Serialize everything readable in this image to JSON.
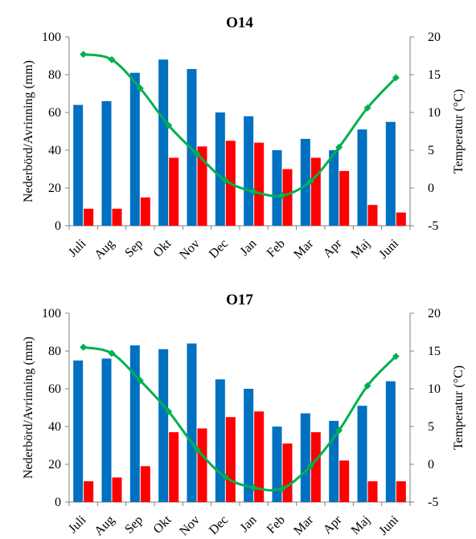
{
  "chart_data": [
    {
      "type": "bar",
      "title": "O14",
      "categories": [
        "Juli",
        "Aug",
        "Sep",
        "Okt",
        "Nov",
        "Dec",
        "Jan",
        "Feb",
        "Mar",
        "Apr",
        "Maj",
        "Juni"
      ],
      "ylabel": "Nederbörd/Avrinning (mm)",
      "y2label": "Temperatur (°C)",
      "ylim": [
        0,
        100
      ],
      "y2lim": [
        -5,
        20
      ],
      "yticks": [
        0,
        20,
        40,
        60,
        80,
        100
      ],
      "y2ticks": [
        -5,
        0,
        5,
        10,
        15,
        20
      ],
      "grid": false,
      "series": [
        {
          "kind": "bar",
          "color": "#0070c0",
          "values": [
            64,
            66,
            81,
            88,
            83,
            60,
            58,
            40,
            46,
            40,
            51,
            55
          ]
        },
        {
          "kind": "bar",
          "color": "#ff0000",
          "values": [
            9,
            9,
            15,
            36,
            42,
            45,
            44,
            30,
            36,
            29,
            11,
            7
          ]
        },
        {
          "kind": "line",
          "axis": "right",
          "color": "#00b050",
          "values": [
            17.7,
            17.0,
            13.2,
            8.3,
            4.5,
            1.0,
            -0.5,
            -1.0,
            0.9,
            5.4,
            10.6,
            14.6
          ]
        }
      ]
    },
    {
      "type": "bar",
      "title": "O17",
      "categories": [
        "Juli",
        "Aug",
        "Sep",
        "Okt",
        "Nov",
        "Dec",
        "Jan",
        "Feb",
        "Mar",
        "Apr",
        "Maj",
        "Juni"
      ],
      "ylabel": "Nederbörd/Avrinning (mm)",
      "y2label": "Temperatur (°C)",
      "ylim": [
        0,
        100
      ],
      "y2lim": [
        -5,
        20
      ],
      "yticks": [
        0,
        20,
        40,
        60,
        80,
        100
      ],
      "y2ticks": [
        -5,
        0,
        5,
        10,
        15,
        20
      ],
      "grid": false,
      "series": [
        {
          "kind": "bar",
          "color": "#0070c0",
          "values": [
            75,
            76,
            83,
            81,
            84,
            65,
            60,
            40,
            47,
            43,
            51,
            64
          ]
        },
        {
          "kind": "bar",
          "color": "#ff0000",
          "values": [
            11,
            13,
            19,
            37,
            39,
            45,
            48,
            31,
            37,
            22,
            11,
            11
          ]
        },
        {
          "kind": "line",
          "axis": "right",
          "color": "#00b050",
          "values": [
            15.5,
            14.7,
            11.1,
            7.0,
            2.0,
            -1.7,
            -3.1,
            -3.2,
            -0.2,
            4.5,
            10.4,
            14.3
          ]
        }
      ]
    }
  ]
}
